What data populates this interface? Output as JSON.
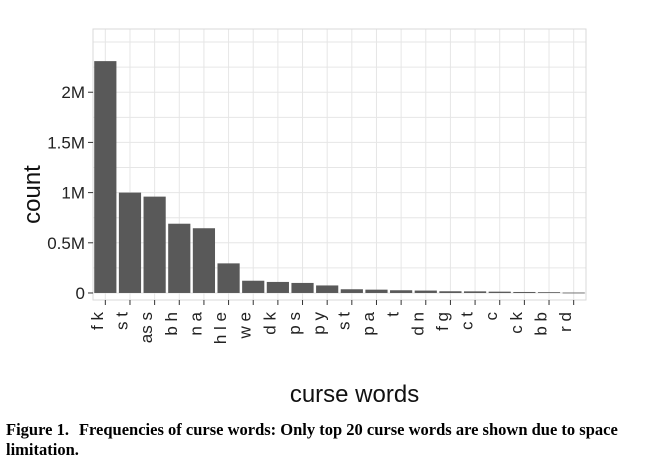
{
  "chart_data": {
    "type": "bar",
    "xlabel": "curse words",
    "ylabel": "count",
    "categories": [
      "f k",
      "s t",
      "as s",
      "b h",
      "n a",
      "h l e",
      "w e",
      "d k",
      "p s",
      "p y",
      "s t",
      "p a",
      "t",
      "d n",
      "f g",
      "c t",
      "c",
      "c k",
      "b b",
      "r d"
    ],
    "values": [
      2310000,
      1000000,
      960000,
      690000,
      645000,
      295000,
      122000,
      110000,
      100000,
      75000,
      37000,
      33000,
      27000,
      24000,
      17000,
      16000,
      13000,
      10000,
      8000,
      4000
    ],
    "ylim": [
      -70000,
      2630000
    ],
    "yticks": [
      0,
      500000,
      1000000,
      1500000,
      2000000
    ],
    "ytick_labels": [
      "0",
      "0.5M",
      "1M",
      "1.5M",
      "2M"
    ],
    "grid": true,
    "bar_color": "#595959",
    "grid_color": "#e6e6e6"
  },
  "caption": {
    "label": "Figure 1.",
    "text": "Frequencies of curse words: Only top 20 curse words are shown due to space limitation."
  }
}
